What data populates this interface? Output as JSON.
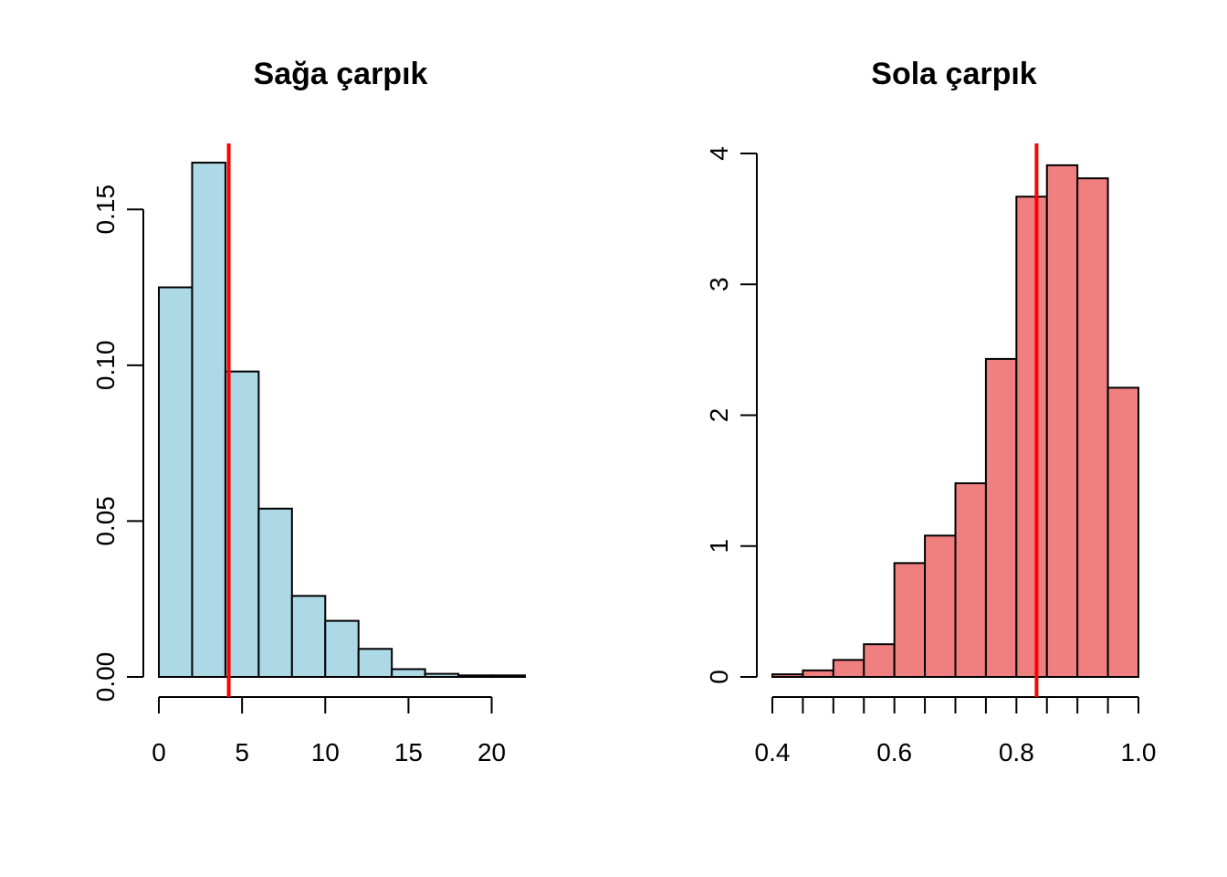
{
  "colors": {
    "left_bars": "#ADD8E6",
    "right_bars": "#F08080",
    "mean_line": "#FF0000"
  },
  "chart_data": [
    {
      "type": "bar",
      "title": "Sağa çarpık",
      "xlabel": "",
      "ylabel": "",
      "bin_edges": [
        0,
        2,
        4,
        6,
        8,
        10,
        12,
        14,
        16,
        18,
        20,
        22
      ],
      "values": [
        0.125,
        0.165,
        0.098,
        0.054,
        0.026,
        0.018,
        0.009,
        0.0025,
        0.001,
        0.0005,
        0.0005
      ],
      "vline": 4.2,
      "xlim": [
        0,
        22
      ],
      "ylim": [
        0,
        0.17
      ],
      "x_ticks": [
        0,
        5,
        10,
        15,
        20
      ],
      "x_tick_labels": [
        "0",
        "5",
        "10",
        "15",
        "20"
      ],
      "y_ticks": [
        0,
        0.05,
        0.1,
        0.15
      ],
      "y_tick_labels": [
        "0.00",
        "0.05",
        "0.10",
        "0.15"
      ],
      "grid": false
    },
    {
      "type": "bar",
      "title": "Sola çarpık",
      "xlabel": "",
      "ylabel": "",
      "bin_edges": [
        0.4,
        0.45,
        0.5,
        0.55,
        0.6,
        0.65,
        0.7,
        0.75,
        0.8,
        0.85,
        0.9,
        0.95,
        1.0
      ],
      "values": [
        0.02,
        0.05,
        0.13,
        0.25,
        0.87,
        1.08,
        1.48,
        2.43,
        3.67,
        3.91,
        3.81,
        2.21
      ],
      "vline": 0.833,
      "xlim": [
        0.4,
        1.0
      ],
      "ylim": [
        0,
        4
      ],
      "x_ticks": [
        0.4,
        0.45,
        0.5,
        0.55,
        0.6,
        0.65,
        0.7,
        0.75,
        0.8,
        0.85,
        0.9,
        0.95,
        1.0
      ],
      "x_tick_labels": [
        "0.4",
        "",
        "",
        "",
        "0.6",
        "",
        "",
        "",
        "0.8",
        "",
        "",
        "",
        "1.0"
      ],
      "y_ticks": [
        0,
        1,
        2,
        3,
        4
      ],
      "y_tick_labels": [
        "0",
        "1",
        "2",
        "3",
        "4"
      ],
      "grid": false
    }
  ]
}
